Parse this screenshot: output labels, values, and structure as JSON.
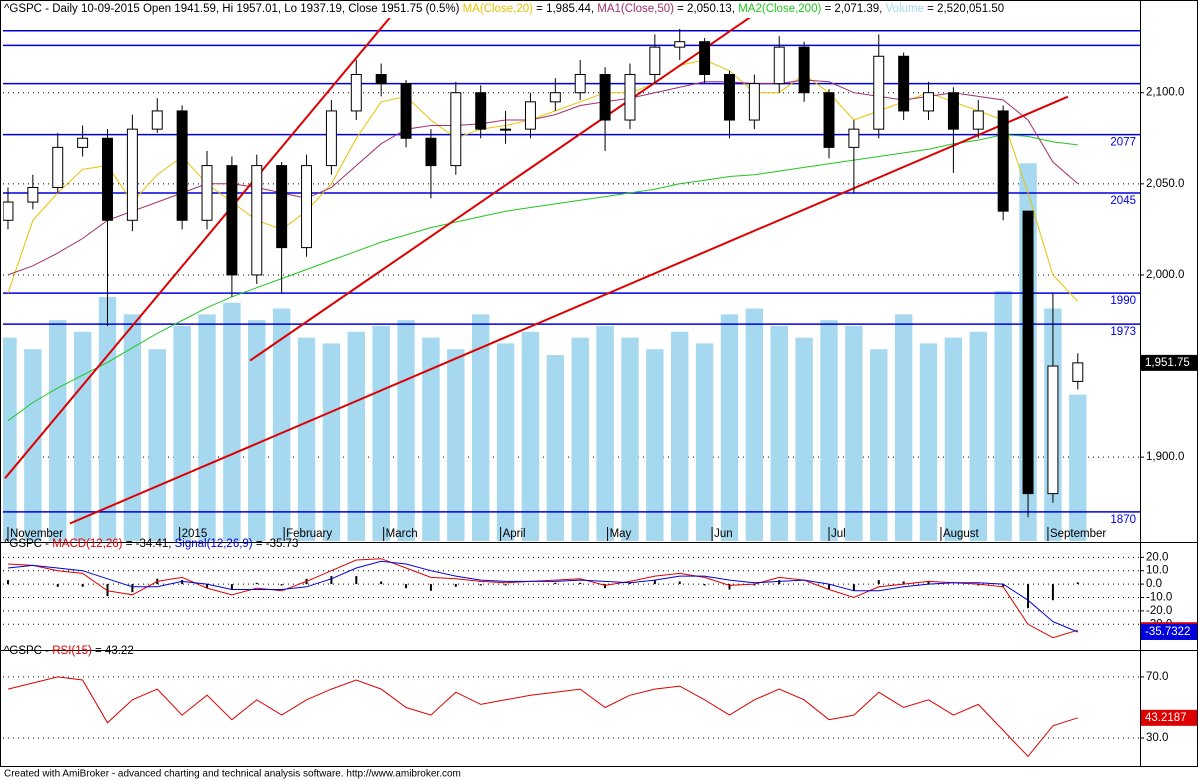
{
  "chart_data": [
    {
      "type": "candlestick",
      "title_parts": [
        {
          "text": "^GSPC - Daily 10-09-2015 Open 1941.59, Hi 1957.01, Lo 1937.19, Close 1951.75 (0.5%) ",
          "color": "#000000"
        },
        {
          "text": "MA(Close,20)",
          "color": "#e8c200"
        },
        {
          "text": " = 1,985.44, ",
          "color": "#000000"
        },
        {
          "text": "MA1(Close,50)",
          "color": "#a0306a"
        },
        {
          "text": " = 2,050.13, ",
          "color": "#000000"
        },
        {
          "text": "MA2(Close,200)",
          "color": "#22c622"
        },
        {
          "text": " = 2,071.39, ",
          "color": "#000000"
        },
        {
          "text": "Volume",
          "color": "#a6d8f0"
        },
        {
          "text": " = 2,520,051.50",
          "color": "#000000"
        }
      ],
      "xlim": [
        -0.2,
        45.5
      ],
      "xticks": [
        {
          "value": 0,
          "label": "November"
        },
        {
          "value": 6.9,
          "label": "2015"
        },
        {
          "value": 11.1,
          "label": "February"
        },
        {
          "value": 15.1,
          "label": "March"
        },
        {
          "value": 19.8,
          "label": "April"
        },
        {
          "value": 24.1,
          "label": "May"
        },
        {
          "value": 28.3,
          "label": "Jun"
        },
        {
          "value": 33.0,
          "label": "Jul"
        },
        {
          "value": 37.5,
          "label": "August"
        },
        {
          "value": 41.8,
          "label": "September"
        }
      ],
      "ylim": [
        1854,
        2141
      ],
      "yticks": [
        {
          "value": 2100,
          "label": "2,100.0"
        },
        {
          "value": 2050,
          "label": "2,050.0"
        },
        {
          "value": 2000,
          "label": "2,000.0"
        },
        {
          "value": 1900,
          "label": "1,900.0"
        }
      ],
      "grid": true,
      "open": [
        2030,
        2040,
        2048,
        2070,
        2075,
        2030,
        2080,
        2090,
        2030,
        2060,
        2000,
        2060,
        2015,
        2060,
        2090,
        2110,
        2105,
        2075,
        2060,
        2100,
        2080,
        2080,
        2095,
        2100,
        2110,
        2085,
        2110,
        2125,
        2128,
        2110,
        2085,
        2105,
        2125,
        2100,
        2070,
        2080,
        2120,
        2090,
        2100,
        2080,
        2090,
        2035,
        1880,
        1941.59
      ],
      "high": [
        2048,
        2055,
        2078,
        2082,
        2080,
        2088,
        2097,
        2093,
        2068,
        2065,
        2066,
        2062,
        2066,
        2096,
        2118,
        2116,
        2107,
        2080,
        2106,
        2104,
        2090,
        2100,
        2108,
        2118,
        2114,
        2116,
        2132,
        2135,
        2130,
        2112,
        2110,
        2131,
        2128,
        2102,
        2085,
        2132,
        2122,
        2106,
        2103,
        2096,
        2093,
        2035,
        1990,
        1957.01
      ],
      "low": [
        2025,
        2036,
        2045,
        2065,
        1972,
        2024,
        2078,
        2025,
        2025,
        1988,
        1995,
        1990,
        2010,
        2055,
        2085,
        2098,
        2070,
        2042,
        2055,
        2075,
        2072,
        2075,
        2090,
        2096,
        2068,
        2080,
        2105,
        2118,
        2105,
        2075,
        2080,
        2100,
        2095,
        2064,
        2045,
        2075,
        2085,
        2085,
        2056,
        2075,
        2030,
        1867,
        1875,
        1937.19
      ],
      "close": [
        2040,
        2048,
        2070,
        2075,
        2030,
        2080,
        2090,
        2030,
        2060,
        2000,
        2060,
        2015,
        2060,
        2090,
        2110,
        2105,
        2075,
        2060,
        2100,
        2080,
        2080,
        2095,
        2100,
        2110,
        2085,
        2110,
        2125,
        2128,
        2110,
        2085,
        2105,
        2125,
        2100,
        2070,
        2080,
        2120,
        2090,
        2100,
        2080,
        2090,
        2035,
        1880,
        1950,
        1951.75
      ],
      "last_label": "1,951.75",
      "series": [
        {
          "color": "#e8c200",
          "values": [
            1990,
            2030,
            2045,
            2058,
            2060,
            2040,
            2055,
            2065,
            2050,
            2040,
            2030,
            2025,
            2035,
            2050,
            2075,
            2095,
            2098,
            2085,
            2075,
            2080,
            2082,
            2085,
            2090,
            2095,
            2100,
            2100,
            2105,
            2115,
            2118,
            2112,
            2100,
            2100,
            2110,
            2100,
            2085,
            2090,
            2095,
            2100,
            2095,
            2090,
            2085,
            2045,
            2000,
            1985.44
          ]
        },
        {
          "color": "#a0306a",
          "values": [
            2000,
            2005,
            2012,
            2020,
            2030,
            2035,
            2040,
            2045,
            2050,
            2050,
            2048,
            2045,
            2042,
            2048,
            2060,
            2072,
            2080,
            2082,
            2082,
            2083,
            2085,
            2085,
            2088,
            2093,
            2095,
            2097,
            2100,
            2103,
            2106,
            2106,
            2105,
            2105,
            2107,
            2106,
            2100,
            2098,
            2096,
            2098,
            2100,
            2098,
            2096,
            2085,
            2062,
            2050.13
          ]
        },
        {
          "color": "#22c622",
          "values": [
            1920,
            1930,
            1938,
            1945,
            1952,
            1960,
            1968,
            1975,
            1982,
            1988,
            1993,
            1998,
            2003,
            2008,
            2013,
            2018,
            2022,
            2026,
            2029,
            2032,
            2035,
            2037,
            2039,
            2041,
            2043,
            2045,
            2047,
            2050,
            2052,
            2054,
            2055,
            2057,
            2059,
            2061,
            2063,
            2065,
            2067,
            2069,
            2072,
            2074,
            2077,
            2076,
            2073,
            2071.39
          ]
        }
      ],
      "volume": {
        "color": "#a6d8f0",
        "ylim": [
          0,
          9000000
        ],
        "values": [
          3500000,
          3300000,
          3800000,
          3600000,
          4200000,
          3900000,
          3300000,
          3700000,
          3900000,
          4100000,
          3800000,
          4000000,
          3500000,
          3400000,
          3600000,
          3700000,
          3800000,
          3500000,
          3300000,
          3900000,
          3400000,
          3600000,
          3200000,
          3500000,
          3700000,
          3500000,
          3300000,
          3600000,
          3400000,
          3900000,
          4000000,
          3700000,
          3500000,
          3800000,
          3700000,
          3300000,
          3900000,
          3400000,
          3500000,
          3600000,
          4300000,
          6500000,
          4000000,
          2520051.5
        ]
      },
      "levels": [
        2134,
        2126,
        2105
      ],
      "labeled_levels": [
        2077,
        2045,
        1990,
        1973,
        1870
      ],
      "level_color": "#0000dd",
      "trendline_color": "#dd0000",
      "trendlines": [
        {
          "x": [
            -0.12,
            15.35
          ],
          "y": [
            1888.4,
            2141.2
          ]
        },
        {
          "x": [
            9.73,
            30.0
          ],
          "y": [
            1953,
            2143
          ]
        },
        {
          "x": [
            2.49,
            42.6
          ],
          "y": [
            1863.6,
            2097.8
          ]
        }
      ]
    },
    {
      "type": "macd",
      "title_parts": [
        {
          "text": "^GSPC - ",
          "color": "#000000"
        },
        {
          "text": "MACD(12,26)",
          "color": "#dd0000"
        },
        {
          "text": " = -34.41, ",
          "color": "#000000"
        },
        {
          "text": "Signal(12,26,9)",
          "color": "#0000dd"
        },
        {
          "text": " = -35.73",
          "color": "#000000"
        }
      ],
      "ylim": [
        -47.7,
        29.2
      ],
      "yticks": [
        {
          "value": 20,
          "label": "20.0"
        },
        {
          "value": 10,
          "label": "10.0"
        },
        {
          "value": 0,
          "label": "0.0"
        },
        {
          "value": -10,
          "label": "-10.0"
        },
        {
          "value": -20,
          "label": "-20.0"
        },
        {
          "value": -30,
          "label": "-30.0"
        }
      ],
      "series": [
        {
          "color": "#dd0000",
          "values": [
            15,
            14,
            10,
            8,
            -5,
            -8,
            2,
            5,
            -3,
            -8,
            -3,
            -5,
            2,
            10,
            18,
            19,
            12,
            5,
            4,
            2,
            1,
            2,
            3,
            4,
            -1,
            2,
            6,
            8,
            5,
            -1,
            0,
            5,
            3,
            -4,
            -10,
            -2,
            0,
            2,
            1,
            0,
            -2,
            -30,
            -40,
            -34.41
          ],
          "last_label": "-34.4084"
        },
        {
          "color": "#0000dd",
          "values": [
            12,
            14,
            12,
            10,
            4,
            -2,
            -2,
            2,
            0,
            -4,
            -4,
            -4,
            -2,
            4,
            12,
            17,
            15,
            10,
            6,
            3,
            2,
            2,
            2,
            3,
            2,
            1,
            3,
            6,
            6,
            3,
            1,
            2,
            3,
            0,
            -5,
            -5,
            -2,
            0,
            1,
            1,
            0,
            -12,
            -28,
            -35.73
          ],
          "last_label": "-35.7322"
        }
      ],
      "histogram": {
        "color": "#000000",
        "values": [
          3,
          0,
          -2,
          -2,
          -9,
          -6,
          4,
          3,
          -3,
          -4,
          1,
          -1,
          4,
          6,
          6,
          2,
          -3,
          -5,
          -2,
          -1,
          -1,
          0,
          1,
          1,
          -3,
          1,
          3,
          2,
          -1,
          -4,
          -1,
          3,
          0,
          -4,
          -5,
          3,
          2,
          2,
          0,
          -1,
          -2,
          -18,
          -12,
          1.32
        ]
      }
    },
    {
      "type": "line",
      "title_parts": [
        {
          "text": "^GSPC - ",
          "color": "#000000"
        },
        {
          "text": "RSI(15)",
          "color": "#dd0000"
        },
        {
          "text": " = 43.22",
          "color": "#000000"
        }
      ],
      "ylim": [
        11.7,
        86.3
      ],
      "yticks": [
        {
          "value": 70,
          "label": "70.0"
        },
        {
          "value": 30,
          "label": "30.0"
        }
      ],
      "series": [
        {
          "color": "#dd0000",
          "values": [
            62,
            66,
            70,
            68,
            40,
            55,
            62,
            45,
            58,
            42,
            55,
            45,
            55,
            62,
            68,
            62,
            50,
            45,
            60,
            52,
            55,
            58,
            60,
            62,
            50,
            58,
            62,
            64,
            55,
            45,
            55,
            62,
            55,
            42,
            45,
            60,
            50,
            55,
            45,
            52,
            35,
            18,
            38,
            43.22
          ],
          "last_label": "43.2187"
        }
      ]
    }
  ],
  "footer": "Created with AmiBroker - advanced charting and technical analysis software. http://www.amibroker.com"
}
